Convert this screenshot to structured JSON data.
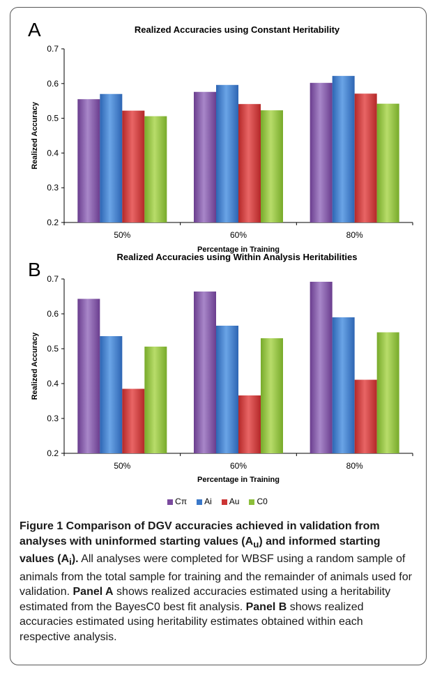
{
  "chart_data": [
    {
      "panel": "A",
      "type": "bar",
      "title": "Realized Accuracies using Constant Heritability",
      "xlabel": "Percentage in Training",
      "ylabel": "Realized Accuracy",
      "categories": [
        "50%",
        "60%",
        "80%"
      ],
      "ylim": [
        0.2,
        0.7
      ],
      "yticks": [
        "0.2",
        "0.3",
        "0.4",
        "0.5",
        "0.6",
        "0.7"
      ],
      "series": [
        {
          "name": "Cπ",
          "values": [
            0.555,
            0.576,
            0.602
          ]
        },
        {
          "name": "Ai",
          "values": [
            0.57,
            0.596,
            0.622
          ]
        },
        {
          "name": "Au",
          "values": [
            0.522,
            0.541,
            0.571
          ]
        },
        {
          "name": "C0",
          "values": [
            0.506,
            0.523,
            0.542
          ]
        }
      ]
    },
    {
      "panel": "B",
      "type": "bar",
      "title": "Realized Accuracies using Within Analysis Heritabilities",
      "xlabel": "Percentage in Training",
      "ylabel": "Realized Accuracy",
      "categories": [
        "50%",
        "60%",
        "80%"
      ],
      "ylim": [
        0.2,
        0.7
      ],
      "yticks": [
        "0.2",
        "0.3",
        "0.4",
        "0.5",
        "0.6",
        "0.7"
      ],
      "series": [
        {
          "name": "Cπ",
          "values": [
            0.643,
            0.664,
            0.692
          ]
        },
        {
          "name": "Ai",
          "values": [
            0.536,
            0.566,
            0.59
          ]
        },
        {
          "name": "Au",
          "values": [
            0.385,
            0.366,
            0.411
          ]
        },
        {
          "name": "C0",
          "values": [
            0.506,
            0.53,
            0.547
          ]
        }
      ]
    }
  ],
  "legend": [
    {
      "label": "Cπ",
      "color": "#7a4a9e"
    },
    {
      "label": "Ai",
      "color": "#3a78c9"
    },
    {
      "label": "Au",
      "color": "#cc3535"
    },
    {
      "label": "C0",
      "color": "#8cbf3a"
    }
  ],
  "colors": {
    "Cπ": {
      "light": "#a887c9",
      "dark": "#6a3d8e"
    },
    "Ai": {
      "light": "#6aa4e6",
      "dark": "#2d65b3"
    },
    "Au": {
      "light": "#e86565",
      "dark": "#b42828"
    },
    "C0": {
      "light": "#b8dc6a",
      "dark": "#77aa2a"
    }
  },
  "caption": {
    "t1": "Figure 1 Comparison of DGV accuracies achieved in validation from analyses with uninformed starting values (A",
    "sub_u": "u",
    "t2": ") and informed starting values (A",
    "sub_i": "i",
    "t3": ").",
    "body1": " All analyses were completed for WBSF using a random sample of animals from the total sample for training and the remainder of animals used for validation. ",
    "panel_a": "Panel A",
    "body2": " shows realized accuracies estimated using a heritability estimated from the BayesC0 best fit analysis. ",
    "panel_b": "Panel B",
    "body3": " shows realized accuracies estimated using heritability estimates obtained within each respective analysis."
  }
}
